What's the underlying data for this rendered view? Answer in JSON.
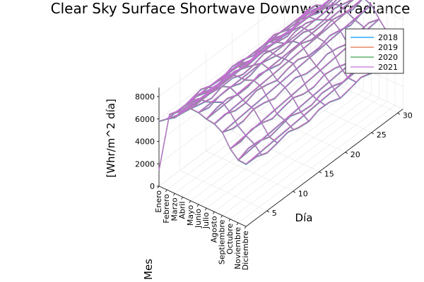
{
  "chart_data": {
    "type": "line",
    "title": "Clear Sky Surface Shortwave Downward Irradiance",
    "x_axis": {
      "label": "Mes",
      "categories": [
        "Enero",
        "Febrero",
        "Marzo",
        "Abril",
        "Mayo",
        "Junio",
        "Julio",
        "Agosto",
        "Septiembre",
        "Octubre",
        "Noviembre",
        "Diciembre"
      ]
    },
    "y_axis": {
      "label": "Día",
      "ticks": [
        5,
        10,
        15,
        20,
        25,
        30
      ],
      "range": [
        1,
        31
      ]
    },
    "z_axis": {
      "label": "[Whr/m^2 día]",
      "ticks": [
        0,
        2000,
        4000,
        6000,
        8000
      ],
      "range": [
        0,
        8800
      ]
    },
    "grid": true,
    "legend_position": "top-right",
    "series": [
      {
        "name": "2018",
        "color": "#009AFA"
      },
      {
        "name": "2019",
        "color": "#E36F47"
      },
      {
        "name": "2020",
        "color": "#3EA44E"
      },
      {
        "name": "2021",
        "color": "#C271D2"
      }
    ],
    "monthly_irradiance_approx": [
      5600,
      6200,
      7000,
      7600,
      8000,
      8200,
      8200,
      7800,
      7200,
      6400,
      5800,
      5400
    ]
  }
}
